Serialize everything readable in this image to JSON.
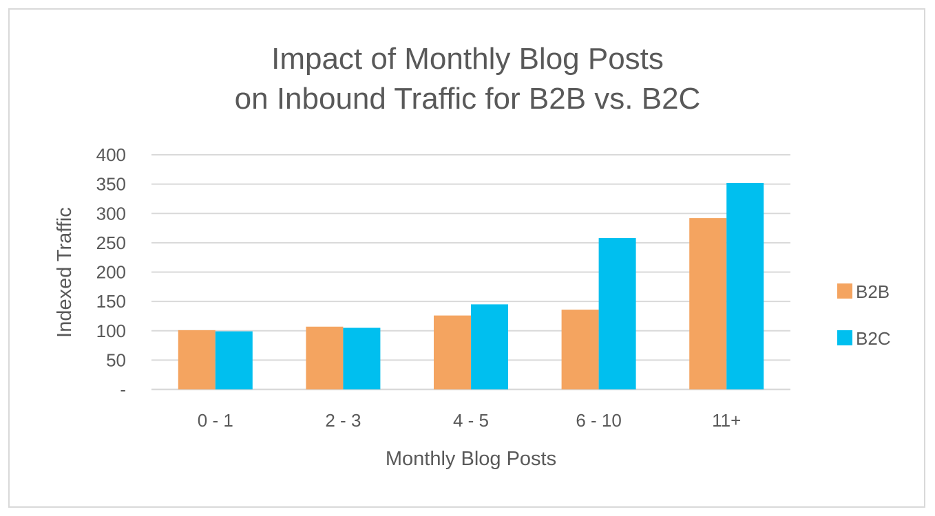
{
  "chart_data": {
    "type": "bar",
    "title": [
      "Impact of Monthly Blog Posts",
      "on Inbound Traffic for B2B vs. B2C"
    ],
    "xlabel": "Monthly Blog Posts",
    "ylabel": "Indexed Traffic",
    "categories": [
      "0 - 1",
      "2 - 3",
      "4 - 5",
      "6 - 10",
      "11+"
    ],
    "series": [
      {
        "name": "B2B",
        "color": "#F4A460",
        "values": [
          101,
          107,
          126,
          136,
          292
        ]
      },
      {
        "name": "B2C",
        "color": "#00BFEF",
        "values": [
          99,
          105,
          145,
          258,
          352
        ]
      }
    ],
    "ylim": [
      0,
      400
    ],
    "yticks": [
      0,
      50,
      100,
      150,
      200,
      250,
      300,
      350,
      400
    ],
    "ytick_labels": [
      "-",
      "50",
      "100",
      "150",
      "200",
      "250",
      "300",
      "350",
      "400"
    ],
    "grid": true,
    "legend": "right"
  }
}
